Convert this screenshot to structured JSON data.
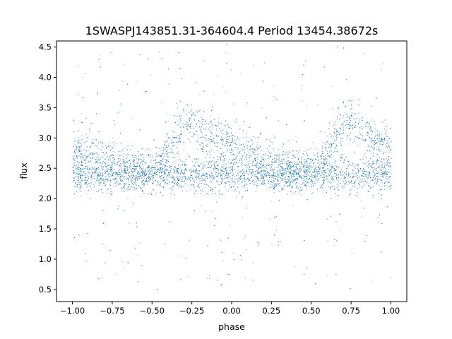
{
  "chart_data": {
    "type": "scatter",
    "title": "1SWASPJ143851.31-364604.4 Period 13454.38672s",
    "xlabel": "phase",
    "ylabel": "flux",
    "xlim": [
      -1.1,
      1.1
    ],
    "ylim": [
      0.3,
      4.6
    ],
    "x_ticks": [
      -1.0,
      -0.75,
      -0.5,
      -0.25,
      0.0,
      0.25,
      0.5,
      0.75,
      1.0
    ],
    "x_tick_labels": [
      "−1.00",
      "−0.75",
      "−0.50",
      "−0.25",
      "0.00",
      "0.25",
      "0.50",
      "0.75",
      "1.00"
    ],
    "y_ticks": [
      0.5,
      1.0,
      1.5,
      2.0,
      2.5,
      3.0,
      3.5,
      4.0,
      4.5
    ],
    "y_tick_labels": [
      "0.5",
      "1.0",
      "1.5",
      "2.0",
      "2.5",
      "3.0",
      "3.5",
      "4.0",
      "4.5"
    ],
    "grid": false,
    "legend": "none",
    "marker_color": "#1f77b4",
    "series": [
      {
        "description_points": "dense folded light curve over phase -1 to 1",
        "profile_x": [
          -1.0,
          -0.75,
          -0.5,
          -0.4,
          -0.3,
          -0.25,
          -0.15,
          0.0,
          0.25,
          0.5,
          0.6,
          0.7,
          0.75,
          0.85,
          1.0
        ],
        "upper_branch_y": [
          2.8,
          2.6,
          2.45,
          2.8,
          3.2,
          3.25,
          3.05,
          2.85,
          2.6,
          2.45,
          2.8,
          3.2,
          3.25,
          3.05,
          2.85
        ],
        "lower_branch_y": [
          2.4,
          2.4,
          2.4,
          2.4,
          2.4,
          2.4,
          2.4,
          2.4,
          2.4,
          2.4,
          2.4,
          2.4,
          2.4,
          2.4,
          2.4
        ]
      }
    ]
  }
}
